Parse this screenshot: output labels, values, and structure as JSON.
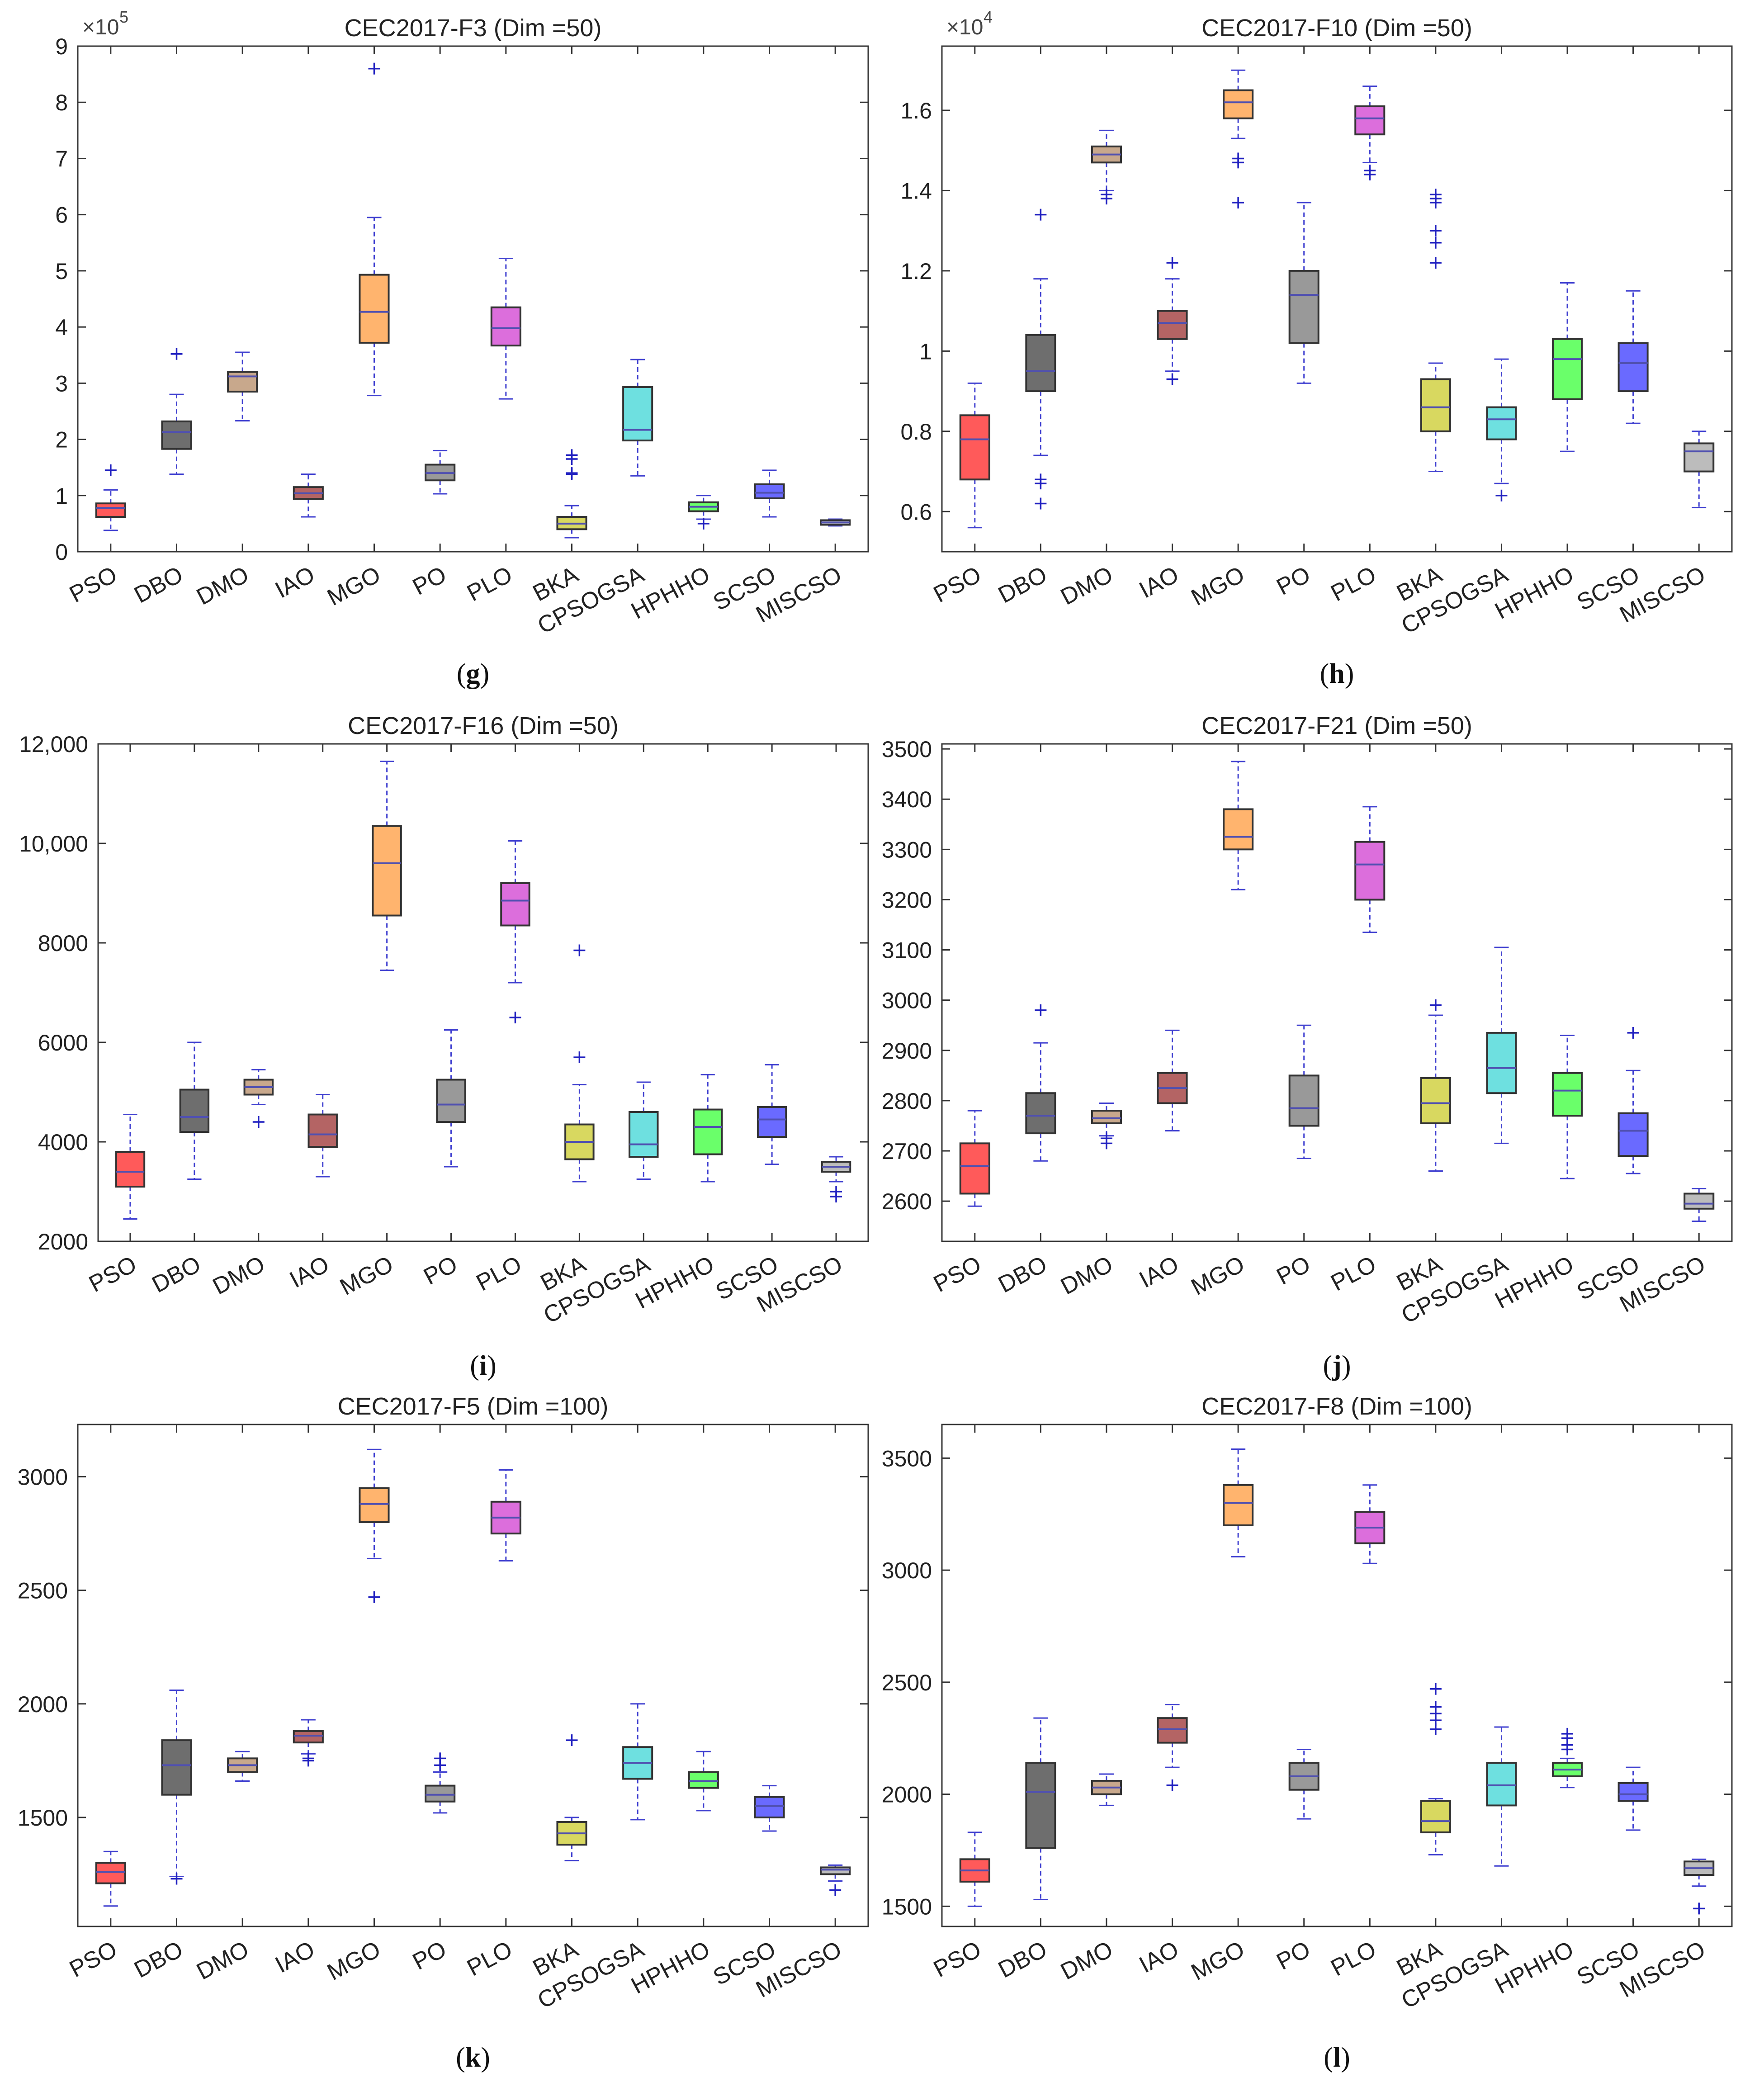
{
  "chart_data": [
    {
      "id": "g",
      "type": "boxplot",
      "title": "CEC2017-F3 (Dim =50)",
      "caption": "(g)",
      "categories": [
        "PSO",
        "DBO",
        "DMO",
        "IAO",
        "MGO",
        "PO",
        "PLO",
        "BKA",
        "CPSOGSA",
        "HPHHO",
        "SCSO",
        "MISCSO"
      ],
      "ylim": [
        0,
        9
      ],
      "yticks": [
        0,
        1,
        2,
        3,
        4,
        5,
        6,
        7,
        8,
        9
      ],
      "ytick_labels": [
        "0",
        "1",
        "2",
        "3",
        "4",
        "5",
        "6",
        "7",
        "8",
        "9"
      ],
      "exponent_label": "×10",
      "exponent_power": "5",
      "boxes": [
        {
          "q1": 0.62,
          "median": 0.78,
          "q3": 0.86,
          "min": 0.38,
          "max": 1.1,
          "outliers": [
            1.45
          ]
        },
        {
          "q1": 1.83,
          "median": 2.13,
          "q3": 2.32,
          "min": 1.38,
          "max": 2.8,
          "outliers": [
            3.52
          ]
        },
        {
          "q1": 2.85,
          "median": 3.12,
          "q3": 3.2,
          "min": 2.33,
          "max": 3.55,
          "outliers": []
        },
        {
          "q1": 0.94,
          "median": 1.04,
          "q3": 1.15,
          "min": 0.62,
          "max": 1.38,
          "outliers": []
        },
        {
          "q1": 3.72,
          "median": 4.27,
          "q3": 4.93,
          "min": 2.78,
          "max": 5.95,
          "outliers": [
            8.6
          ]
        },
        {
          "q1": 1.27,
          "median": 1.4,
          "q3": 1.55,
          "min": 1.03,
          "max": 1.8,
          "outliers": []
        },
        {
          "q1": 3.67,
          "median": 3.98,
          "q3": 4.35,
          "min": 2.72,
          "max": 5.22,
          "outliers": []
        },
        {
          "q1": 0.4,
          "median": 0.5,
          "q3": 0.62,
          "min": 0.25,
          "max": 0.82,
          "outliers": [
            1.38,
            1.4,
            1.65,
            1.72
          ]
        },
        {
          "q1": 1.98,
          "median": 2.17,
          "q3": 2.93,
          "min": 1.35,
          "max": 3.42,
          "outliers": []
        },
        {
          "q1": 0.72,
          "median": 0.8,
          "q3": 0.88,
          "min": 0.58,
          "max": 1.0,
          "outliers": [
            0.5
          ]
        },
        {
          "q1": 0.95,
          "median": 1.05,
          "q3": 1.2,
          "min": 0.62,
          "max": 1.45,
          "outliers": []
        },
        {
          "q1": 0.48,
          "median": 0.52,
          "q3": 0.56,
          "min": 0.46,
          "max": 0.58,
          "outliers": []
        }
      ]
    },
    {
      "id": "h",
      "type": "boxplot",
      "title": "CEC2017-F10 (Dim =50)",
      "caption": "(h)",
      "categories": [
        "PSO",
        "DBO",
        "DMO",
        "IAO",
        "MGO",
        "PO",
        "PLO",
        "BKA",
        "CPSOGSA",
        "HPHHO",
        "SCSO",
        "MISCSO"
      ],
      "ylim": [
        0.5,
        1.76
      ],
      "yticks": [
        0.6,
        0.8,
        1.0,
        1.2,
        1.4,
        1.6
      ],
      "ytick_labels": [
        "0.6",
        "0.8",
        "1",
        "1.2",
        "1.4",
        "1.6"
      ],
      "exponent_label": "×10",
      "exponent_power": "4",
      "boxes": [
        {
          "q1": 0.68,
          "median": 0.78,
          "q3": 0.84,
          "min": 0.56,
          "max": 0.92,
          "outliers": []
        },
        {
          "q1": 0.9,
          "median": 0.95,
          "q3": 1.04,
          "min": 0.74,
          "max": 1.18,
          "outliers": [
            0.62,
            0.67,
            0.68,
            1.34
          ]
        },
        {
          "q1": 1.47,
          "median": 1.49,
          "q3": 1.51,
          "min": 1.4,
          "max": 1.55,
          "outliers": [
            1.38,
            1.39
          ]
        },
        {
          "q1": 1.03,
          "median": 1.07,
          "q3": 1.1,
          "min": 0.95,
          "max": 1.18,
          "outliers": [
            0.93,
            1.22
          ]
        },
        {
          "q1": 1.58,
          "median": 1.62,
          "q3": 1.65,
          "min": 1.53,
          "max": 1.7,
          "outliers": [
            1.37,
            1.47,
            1.48
          ]
        },
        {
          "q1": 1.02,
          "median": 1.14,
          "q3": 1.2,
          "min": 0.92,
          "max": 1.37,
          "outliers": []
        },
        {
          "q1": 1.54,
          "median": 1.58,
          "q3": 1.61,
          "min": 1.47,
          "max": 1.66,
          "outliers": [
            1.44,
            1.45
          ]
        },
        {
          "q1": 0.8,
          "median": 0.86,
          "q3": 0.93,
          "min": 0.7,
          "max": 0.97,
          "outliers": [
            1.22,
            1.27,
            1.3,
            1.37,
            1.38,
            1.39
          ]
        },
        {
          "q1": 0.78,
          "median": 0.83,
          "q3": 0.86,
          "min": 0.67,
          "max": 0.98,
          "outliers": [
            0.64
          ]
        },
        {
          "q1": 0.88,
          "median": 0.98,
          "q3": 1.03,
          "min": 0.75,
          "max": 1.17,
          "outliers": []
        },
        {
          "q1": 0.9,
          "median": 0.97,
          "q3": 1.02,
          "min": 0.82,
          "max": 1.15,
          "outliers": []
        },
        {
          "q1": 0.7,
          "median": 0.75,
          "q3": 0.77,
          "min": 0.61,
          "max": 0.8,
          "outliers": []
        }
      ]
    },
    {
      "id": "i",
      "type": "boxplot",
      "title": "CEC2017-F16 (Dim =50)",
      "caption": "(i)",
      "categories": [
        "PSO",
        "DBO",
        "DMO",
        "IAO",
        "MGO",
        "PO",
        "PLO",
        "BKA",
        "CPSOGSA",
        "HPHHO",
        "SCSO",
        "MISCSO"
      ],
      "ylim": [
        2000,
        12000
      ],
      "yticks": [
        2000,
        4000,
        6000,
        8000,
        10000,
        12000
      ],
      "ytick_labels": [
        "2000",
        "4000",
        "6000",
        "8000",
        "10,000",
        "12,000"
      ],
      "boxes": [
        {
          "q1": 3100,
          "median": 3400,
          "q3": 3800,
          "min": 2450,
          "max": 4550,
          "outliers": []
        },
        {
          "q1": 4200,
          "median": 4500,
          "q3": 5050,
          "min": 3250,
          "max": 6000,
          "outliers": []
        },
        {
          "q1": 4950,
          "median": 5100,
          "q3": 5250,
          "min": 4750,
          "max": 5450,
          "outliers": [
            4400
          ]
        },
        {
          "q1": 3900,
          "median": 4150,
          "q3": 4550,
          "min": 3300,
          "max": 4950,
          "outliers": []
        },
        {
          "q1": 8550,
          "median": 9600,
          "q3": 10350,
          "min": 7450,
          "max": 11650,
          "outliers": []
        },
        {
          "q1": 4400,
          "median": 4750,
          "q3": 5250,
          "min": 3500,
          "max": 6250,
          "outliers": []
        },
        {
          "q1": 8350,
          "median": 8850,
          "q3": 9200,
          "min": 7200,
          "max": 10050,
          "outliers": [
            6500
          ]
        },
        {
          "q1": 3650,
          "median": 4000,
          "q3": 4350,
          "min": 3200,
          "max": 5150,
          "outliers": [
            5700,
            7850
          ]
        },
        {
          "q1": 3700,
          "median": 3950,
          "q3": 4600,
          "min": 3250,
          "max": 5200,
          "outliers": []
        },
        {
          "q1": 3750,
          "median": 4300,
          "q3": 4650,
          "min": 3200,
          "max": 5350,
          "outliers": []
        },
        {
          "q1": 4100,
          "median": 4450,
          "q3": 4700,
          "min": 3550,
          "max": 5550,
          "outliers": []
        },
        {
          "q1": 3400,
          "median": 3500,
          "q3": 3600,
          "min": 3200,
          "max": 3700,
          "outliers": [
            2900,
            3000
          ]
        }
      ]
    },
    {
      "id": "j",
      "type": "boxplot",
      "title": "CEC2017-F21 (Dim =50)",
      "caption": "(j)",
      "categories": [
        "PSO",
        "DBO",
        "DMO",
        "IAO",
        "MGO",
        "PO",
        "PLO",
        "BKA",
        "CPSOGSA",
        "HPHHO",
        "SCSO",
        "MISCSO"
      ],
      "ylim": [
        2520,
        3510
      ],
      "yticks": [
        2600,
        2700,
        2800,
        2900,
        3000,
        3100,
        3200,
        3300,
        3400,
        3500
      ],
      "ytick_labels": [
        "2600",
        "2700",
        "2800",
        "2900",
        "3000",
        "3100",
        "3200",
        "3300",
        "3400",
        "3500"
      ],
      "boxes": [
        {
          "q1": 2615,
          "median": 2670,
          "q3": 2715,
          "min": 2590,
          "max": 2780,
          "outliers": []
        },
        {
          "q1": 2735,
          "median": 2770,
          "q3": 2815,
          "min": 2680,
          "max": 2915,
          "outliers": [
            2980
          ]
        },
        {
          "q1": 2755,
          "median": 2765,
          "q3": 2780,
          "min": 2730,
          "max": 2795,
          "outliers": [
            2715,
            2725
          ]
        },
        {
          "q1": 2795,
          "median": 2825,
          "q3": 2855,
          "min": 2740,
          "max": 2940,
          "outliers": []
        },
        {
          "q1": 3300,
          "median": 3325,
          "q3": 3380,
          "min": 3220,
          "max": 3475,
          "outliers": []
        },
        {
          "q1": 2750,
          "median": 2785,
          "q3": 2850,
          "min": 2685,
          "max": 2950,
          "outliers": []
        },
        {
          "q1": 3200,
          "median": 3270,
          "q3": 3315,
          "min": 3135,
          "max": 3385,
          "outliers": []
        },
        {
          "q1": 2755,
          "median": 2795,
          "q3": 2845,
          "min": 2660,
          "max": 2970,
          "outliers": [
            2990
          ]
        },
        {
          "q1": 2815,
          "median": 2865,
          "q3": 2935,
          "min": 2715,
          "max": 3105,
          "outliers": []
        },
        {
          "q1": 2770,
          "median": 2820,
          "q3": 2855,
          "min": 2645,
          "max": 2930,
          "outliers": []
        },
        {
          "q1": 2690,
          "median": 2740,
          "q3": 2775,
          "min": 2655,
          "max": 2860,
          "outliers": [
            2935
          ]
        },
        {
          "q1": 2585,
          "median": 2595,
          "q3": 2615,
          "min": 2560,
          "max": 2625,
          "outliers": []
        }
      ]
    },
    {
      "id": "k",
      "type": "boxplot",
      "title": "CEC2017-F5 (Dim =100)",
      "caption": "(k)",
      "categories": [
        "PSO",
        "DBO",
        "DMO",
        "IAO",
        "MGO",
        "PO",
        "PLO",
        "BKA",
        "CPSOGSA",
        "HPHHO",
        "SCSO",
        "MISCSO"
      ],
      "ylim": [
        1020,
        3230
      ],
      "yticks": [
        1500,
        2000,
        2500,
        3000
      ],
      "ytick_labels": [
        "1500",
        "2000",
        "2500",
        "3000"
      ],
      "boxes": [
        {
          "q1": 1210,
          "median": 1260,
          "q3": 1300,
          "min": 1110,
          "max": 1350,
          "outliers": []
        },
        {
          "q1": 1600,
          "median": 1730,
          "q3": 1840,
          "min": 1240,
          "max": 2060,
          "outliers": [
            1230
          ]
        },
        {
          "q1": 1700,
          "median": 1730,
          "q3": 1760,
          "min": 1660,
          "max": 1790,
          "outliers": []
        },
        {
          "q1": 1830,
          "median": 1860,
          "q3": 1880,
          "min": 1780,
          "max": 1930,
          "outliers": [
            1750,
            1760
          ]
        },
        {
          "q1": 2800,
          "median": 2880,
          "q3": 2950,
          "min": 2640,
          "max": 3120,
          "outliers": [
            2470
          ]
        },
        {
          "q1": 1570,
          "median": 1600,
          "q3": 1640,
          "min": 1520,
          "max": 1700,
          "outliers": [
            1730,
            1760
          ]
        },
        {
          "q1": 2750,
          "median": 2820,
          "q3": 2890,
          "min": 2630,
          "max": 3030,
          "outliers": []
        },
        {
          "q1": 1380,
          "median": 1430,
          "q3": 1480,
          "min": 1310,
          "max": 1500,
          "outliers": [
            1840
          ]
        },
        {
          "q1": 1670,
          "median": 1740,
          "q3": 1810,
          "min": 1490,
          "max": 2000,
          "outliers": []
        },
        {
          "q1": 1630,
          "median": 1660,
          "q3": 1700,
          "min": 1530,
          "max": 1790,
          "outliers": []
        },
        {
          "q1": 1500,
          "median": 1550,
          "q3": 1590,
          "min": 1440,
          "max": 1640,
          "outliers": []
        },
        {
          "q1": 1250,
          "median": 1270,
          "q3": 1280,
          "min": 1220,
          "max": 1290,
          "outliers": [
            1180
          ]
        }
      ]
    },
    {
      "id": "l",
      "type": "boxplot",
      "title": "CEC2017-F8 (Dim =100)",
      "caption": "(l)",
      "categories": [
        "PSO",
        "DBO",
        "DMO",
        "IAO",
        "MGO",
        "PO",
        "PLO",
        "BKA",
        "CPSOGSA",
        "HPHHO",
        "SCSO",
        "MISCSO"
      ],
      "ylim": [
        1410,
        3650
      ],
      "yticks": [
        1500,
        2000,
        2500,
        3000,
        3500
      ],
      "ytick_labels": [
        "1500",
        "2000",
        "2500",
        "3000",
        "3500"
      ],
      "boxes": [
        {
          "q1": 1610,
          "median": 1660,
          "q3": 1710,
          "min": 1500,
          "max": 1830,
          "outliers": []
        },
        {
          "q1": 1760,
          "median": 2010,
          "q3": 2140,
          "min": 1530,
          "max": 2340,
          "outliers": []
        },
        {
          "q1": 2000,
          "median": 2030,
          "q3": 2060,
          "min": 1950,
          "max": 2090,
          "outliers": []
        },
        {
          "q1": 2230,
          "median": 2290,
          "q3": 2340,
          "min": 2120,
          "max": 2400,
          "outliers": [
            2040
          ]
        },
        {
          "q1": 3200,
          "median": 3300,
          "q3": 3380,
          "min": 3060,
          "max": 3540,
          "outliers": []
        },
        {
          "q1": 2020,
          "median": 2080,
          "q3": 2140,
          "min": 1890,
          "max": 2200,
          "outliers": []
        },
        {
          "q1": 3120,
          "median": 3190,
          "q3": 3260,
          "min": 3030,
          "max": 3380,
          "outliers": []
        },
        {
          "q1": 1830,
          "median": 1880,
          "q3": 1970,
          "min": 1730,
          "max": 1980,
          "outliers": [
            2290,
            2330,
            2360,
            2390,
            2470
          ]
        },
        {
          "q1": 1950,
          "median": 2040,
          "q3": 2140,
          "min": 1680,
          "max": 2300,
          "outliers": []
        },
        {
          "q1": 2080,
          "median": 2110,
          "q3": 2140,
          "min": 2030,
          "max": 2160,
          "outliers": [
            2200,
            2220,
            2250,
            2270
          ]
        },
        {
          "q1": 1970,
          "median": 2000,
          "q3": 2050,
          "min": 1840,
          "max": 2120,
          "outliers": []
        },
        {
          "q1": 1640,
          "median": 1670,
          "q3": 1700,
          "min": 1590,
          "max": 1710,
          "outliers": [
            1490
          ]
        }
      ]
    }
  ],
  "box_colors": [
    "#ff5a5a",
    "#6e6e6e",
    "#c8a88c",
    "#b46464",
    "#ffb46e",
    "#999999",
    "#dc6edc",
    "#d8d860",
    "#6ee0e0",
    "#6aff6a",
    "#6a6aff",
    "#bcbcbc"
  ],
  "median_color": "#5050b0",
  "whisker_color": "#4040d0",
  "outlier_color": "#2020c0"
}
